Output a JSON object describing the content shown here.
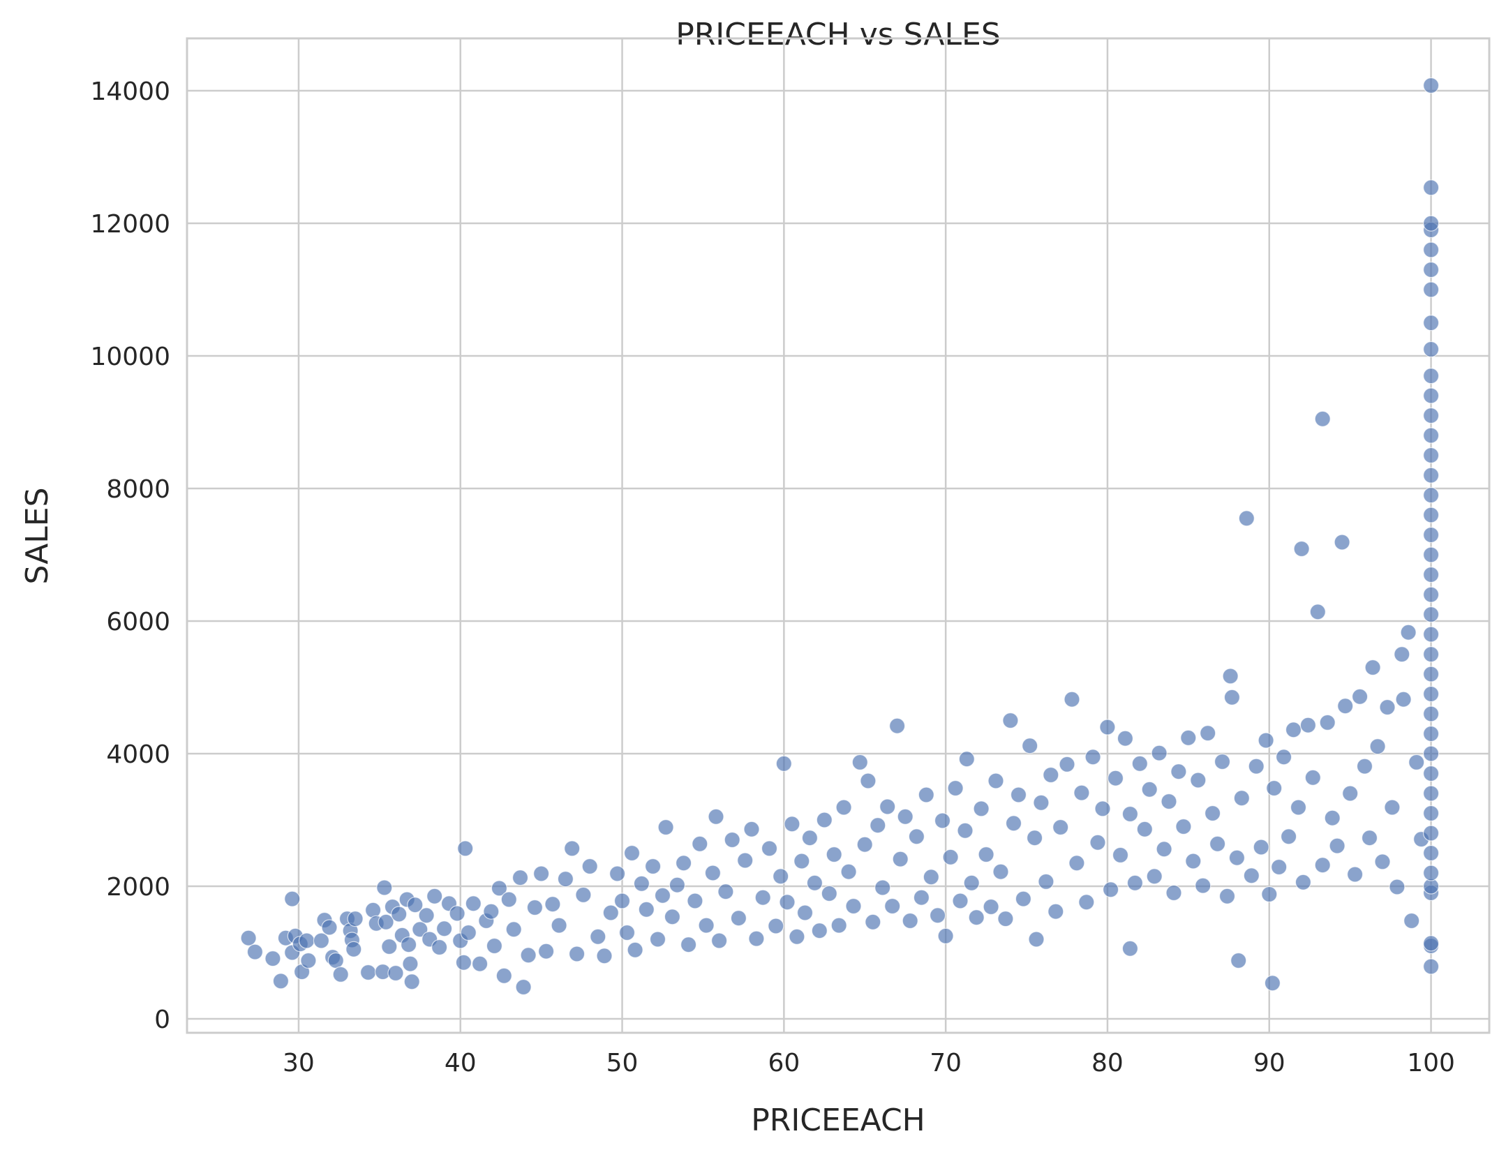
{
  "chart_data": {
    "type": "scatter",
    "title": "PRICEEACH vs SALES",
    "xlabel": "PRICEEACH",
    "ylabel": "SALES",
    "xlim": [
      23.1,
      103.6
    ],
    "ylim": [
      -210,
      14790
    ],
    "xticks": [
      30,
      40,
      50,
      60,
      70,
      80,
      90,
      100
    ],
    "yticks": [
      0,
      2000,
      4000,
      6000,
      8000,
      10000,
      12000,
      14000
    ],
    "grid": true,
    "legend": "none",
    "series": [
      {
        "color": "#4c72b0",
        "points": [
          [
            26.9,
            1220
          ],
          [
            27.3,
            1010
          ],
          [
            28.4,
            910
          ],
          [
            28.9,
            570
          ],
          [
            29.2,
            1220
          ],
          [
            29.6,
            1810
          ],
          [
            29.6,
            1000
          ],
          [
            29.8,
            1250
          ],
          [
            30.1,
            1130
          ],
          [
            30.2,
            710
          ],
          [
            30.5,
            1180
          ],
          [
            30.6,
            880
          ],
          [
            31.4,
            1180
          ],
          [
            31.6,
            1490
          ],
          [
            31.9,
            1380
          ],
          [
            32.1,
            930
          ],
          [
            32.3,
            880
          ],
          [
            32.6,
            670
          ],
          [
            33.0,
            1510
          ],
          [
            33.2,
            1330
          ],
          [
            33.3,
            1190
          ],
          [
            33.4,
            1050
          ],
          [
            33.5,
            1510
          ],
          [
            34.3,
            700
          ],
          [
            34.6,
            1640
          ],
          [
            34.8,
            1440
          ],
          [
            35.2,
            710
          ],
          [
            35.3,
            1980
          ],
          [
            35.4,
            1460
          ],
          [
            35.6,
            1090
          ],
          [
            35.8,
            1690
          ],
          [
            36.0,
            690
          ],
          [
            36.2,
            1580
          ],
          [
            36.4,
            1260
          ],
          [
            36.7,
            1800
          ],
          [
            36.8,
            1120
          ],
          [
            36.9,
            830
          ],
          [
            37.0,
            560
          ],
          [
            37.2,
            1720
          ],
          [
            37.5,
            1350
          ],
          [
            37.9,
            1560
          ],
          [
            38.1,
            1200
          ],
          [
            38.4,
            1850
          ],
          [
            38.7,
            1080
          ],
          [
            39.0,
            1360
          ],
          [
            39.3,
            1740
          ],
          [
            39.8,
            1590
          ],
          [
            40.0,
            1180
          ],
          [
            40.2,
            850
          ],
          [
            40.3,
            2570
          ],
          [
            40.5,
            1300
          ],
          [
            40.8,
            1740
          ],
          [
            41.2,
            830
          ],
          [
            41.6,
            1480
          ],
          [
            41.9,
            1620
          ],
          [
            42.1,
            1100
          ],
          [
            42.4,
            1970
          ],
          [
            42.7,
            650
          ],
          [
            43.0,
            1800
          ],
          [
            43.3,
            1350
          ],
          [
            43.7,
            2130
          ],
          [
            43.9,
            480
          ],
          [
            44.2,
            960
          ],
          [
            44.6,
            1680
          ],
          [
            45.0,
            2190
          ],
          [
            45.3,
            1020
          ],
          [
            45.7,
            1730
          ],
          [
            46.1,
            1410
          ],
          [
            46.5,
            2110
          ],
          [
            46.9,
            2570
          ],
          [
            47.2,
            980
          ],
          [
            47.6,
            1870
          ],
          [
            48.0,
            2300
          ],
          [
            48.5,
            1240
          ],
          [
            48.9,
            950
          ],
          [
            49.3,
            1600
          ],
          [
            49.7,
            2190
          ],
          [
            50.0,
            1780
          ],
          [
            50.3,
            1300
          ],
          [
            50.6,
            2500
          ],
          [
            50.8,
            1040
          ],
          [
            51.2,
            2040
          ],
          [
            51.5,
            1650
          ],
          [
            51.9,
            2300
          ],
          [
            52.2,
            1200
          ],
          [
            52.5,
            1860
          ],
          [
            52.7,
            2890
          ],
          [
            53.1,
            1540
          ],
          [
            53.4,
            2020
          ],
          [
            53.8,
            2350
          ],
          [
            54.1,
            1120
          ],
          [
            54.5,
            1780
          ],
          [
            54.8,
            2640
          ],
          [
            55.2,
            1410
          ],
          [
            55.6,
            2200
          ],
          [
            55.8,
            3050
          ],
          [
            56.0,
            1180
          ],
          [
            56.4,
            1920
          ],
          [
            56.8,
            2700
          ],
          [
            57.2,
            1520
          ],
          [
            57.6,
            2390
          ],
          [
            58.0,
            2860
          ],
          [
            58.3,
            1210
          ],
          [
            58.7,
            1830
          ],
          [
            59.1,
            2570
          ],
          [
            59.5,
            1400
          ],
          [
            59.8,
            2150
          ],
          [
            60.0,
            3850
          ],
          [
            60.2,
            1760
          ],
          [
            60.5,
            2940
          ],
          [
            60.8,
            1240
          ],
          [
            61.1,
            2380
          ],
          [
            61.3,
            1600
          ],
          [
            61.6,
            2730
          ],
          [
            61.9,
            2050
          ],
          [
            62.2,
            1330
          ],
          [
            62.5,
            3000
          ],
          [
            62.8,
            1890
          ],
          [
            63.1,
            2480
          ],
          [
            63.4,
            1410
          ],
          [
            63.7,
            3190
          ],
          [
            64.0,
            2220
          ],
          [
            64.3,
            1700
          ],
          [
            64.7,
            3870
          ],
          [
            65.0,
            2630
          ],
          [
            65.2,
            3590
          ],
          [
            65.5,
            1460
          ],
          [
            65.8,
            2920
          ],
          [
            66.1,
            1980
          ],
          [
            66.4,
            3200
          ],
          [
            66.7,
            1700
          ],
          [
            67.0,
            4420
          ],
          [
            67.2,
            2410
          ],
          [
            67.5,
            3050
          ],
          [
            67.8,
            1480
          ],
          [
            68.2,
            2750
          ],
          [
            68.5,
            1830
          ],
          [
            68.8,
            3380
          ],
          [
            69.1,
            2140
          ],
          [
            69.5,
            1560
          ],
          [
            69.8,
            2990
          ],
          [
            70.0,
            1250
          ],
          [
            70.3,
            2440
          ],
          [
            70.6,
            3480
          ],
          [
            70.9,
            1780
          ],
          [
            71.2,
            2840
          ],
          [
            71.3,
            3920
          ],
          [
            71.6,
            2050
          ],
          [
            71.9,
            1530
          ],
          [
            72.2,
            3170
          ],
          [
            72.5,
            2480
          ],
          [
            72.8,
            1690
          ],
          [
            73.1,
            3590
          ],
          [
            73.4,
            2220
          ],
          [
            73.7,
            1510
          ],
          [
            74.0,
            4500
          ],
          [
            74.2,
            2950
          ],
          [
            74.5,
            3380
          ],
          [
            74.8,
            1810
          ],
          [
            75.2,
            4120
          ],
          [
            75.5,
            2730
          ],
          [
            75.6,
            1200
          ],
          [
            75.9,
            3260
          ],
          [
            76.2,
            2070
          ],
          [
            76.5,
            3680
          ],
          [
            76.8,
            1620
          ],
          [
            77.1,
            2890
          ],
          [
            77.5,
            3840
          ],
          [
            77.8,
            4820
          ],
          [
            78.1,
            2350
          ],
          [
            78.4,
            3410
          ],
          [
            78.7,
            1760
          ],
          [
            79.1,
            3950
          ],
          [
            79.4,
            2660
          ],
          [
            79.7,
            3170
          ],
          [
            80.0,
            4400
          ],
          [
            80.2,
            1950
          ],
          [
            80.5,
            3630
          ],
          [
            80.8,
            2470
          ],
          [
            81.1,
            4230
          ],
          [
            81.4,
            3090
          ],
          [
            81.4,
            1060
          ],
          [
            81.7,
            2050
          ],
          [
            82.0,
            3850
          ],
          [
            82.3,
            2860
          ],
          [
            82.6,
            3460
          ],
          [
            82.9,
            2150
          ],
          [
            83.2,
            4010
          ],
          [
            83.5,
            2560
          ],
          [
            83.8,
            3280
          ],
          [
            84.1,
            1900
          ],
          [
            84.4,
            3730
          ],
          [
            84.7,
            2900
          ],
          [
            85.0,
            4240
          ],
          [
            85.3,
            2380
          ],
          [
            85.6,
            3600
          ],
          [
            85.9,
            2010
          ],
          [
            86.2,
            4310
          ],
          [
            86.5,
            3100
          ],
          [
            86.8,
            2640
          ],
          [
            87.1,
            3880
          ],
          [
            87.4,
            1850
          ],
          [
            87.6,
            5170
          ],
          [
            87.7,
            4850
          ],
          [
            88.0,
            2430
          ],
          [
            88.1,
            880
          ],
          [
            88.3,
            3330
          ],
          [
            88.6,
            7550
          ],
          [
            88.9,
            2160
          ],
          [
            89.2,
            3810
          ],
          [
            89.5,
            2590
          ],
          [
            89.8,
            4200
          ],
          [
            90.0,
            1880
          ],
          [
            90.2,
            540
          ],
          [
            90.3,
            3480
          ],
          [
            90.6,
            2290
          ],
          [
            90.9,
            3950
          ],
          [
            91.2,
            2750
          ],
          [
            91.5,
            4360
          ],
          [
            91.8,
            3190
          ],
          [
            92.0,
            7090
          ],
          [
            92.1,
            2060
          ],
          [
            92.4,
            4430
          ],
          [
            92.7,
            3640
          ],
          [
            93.0,
            6140
          ],
          [
            93.3,
            9050
          ],
          [
            93.3,
            2320
          ],
          [
            93.6,
            4470
          ],
          [
            93.9,
            3030
          ],
          [
            94.2,
            2610
          ],
          [
            94.5,
            7190
          ],
          [
            94.7,
            4720
          ],
          [
            95.0,
            3400
          ],
          [
            95.3,
            2180
          ],
          [
            95.6,
            4860
          ],
          [
            95.9,
            3810
          ],
          [
            96.2,
            2730
          ],
          [
            96.4,
            5300
          ],
          [
            96.7,
            4110
          ],
          [
            97.0,
            2370
          ],
          [
            97.3,
            4700
          ],
          [
            97.6,
            3190
          ],
          [
            97.9,
            1990
          ],
          [
            98.2,
            5500
          ],
          [
            98.3,
            4820
          ],
          [
            98.6,
            5830
          ],
          [
            98.8,
            1480
          ],
          [
            99.1,
            3870
          ],
          [
            99.4,
            2710
          ],
          [
            100,
            790
          ],
          [
            100,
            1100
          ],
          [
            100,
            1140
          ],
          [
            100,
            1900
          ],
          [
            100,
            2000
          ],
          [
            100,
            2200
          ],
          [
            100,
            2500
          ],
          [
            100,
            2800
          ],
          [
            100,
            3100
          ],
          [
            100,
            3400
          ],
          [
            100,
            3700
          ],
          [
            100,
            4000
          ],
          [
            100,
            4300
          ],
          [
            100,
            4600
          ],
          [
            100,
            4900
          ],
          [
            100,
            5200
          ],
          [
            100,
            5500
          ],
          [
            100,
            5800
          ],
          [
            100,
            6100
          ],
          [
            100,
            6400
          ],
          [
            100,
            6700
          ],
          [
            100,
            7000
          ],
          [
            100,
            7300
          ],
          [
            100,
            7600
          ],
          [
            100,
            7900
          ],
          [
            100,
            8200
          ],
          [
            100,
            8500
          ],
          [
            100,
            8800
          ],
          [
            100,
            9100
          ],
          [
            100,
            9400
          ],
          [
            100,
            9700
          ],
          [
            100,
            10100
          ],
          [
            100,
            10500
          ],
          [
            100,
            11000
          ],
          [
            100,
            11300
          ],
          [
            100,
            11600
          ],
          [
            100,
            11900
          ],
          [
            100,
            12000
          ],
          [
            100,
            12540
          ],
          [
            100,
            14080
          ]
        ]
      }
    ]
  }
}
